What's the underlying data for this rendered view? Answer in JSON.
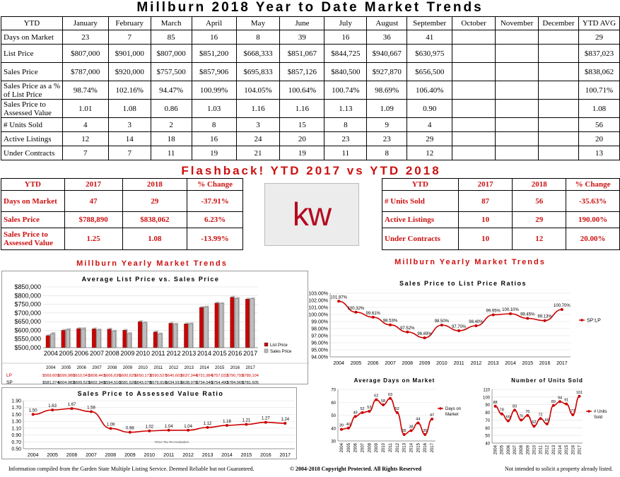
{
  "header": {
    "title": "Millburn 2018 Year to Date Market Trends"
  },
  "main_table": {
    "columns": [
      "YTD",
      "January",
      "February",
      "March",
      "April",
      "May",
      "June",
      "July",
      "August",
      "September",
      "October",
      "November",
      "December",
      "YTD AVG"
    ],
    "rows": [
      {
        "label": "Days on Market",
        "values": [
          "23",
          "7",
          "85",
          "16",
          "8",
          "39",
          "16",
          "36",
          "41",
          "",
          "",
          "",
          "29"
        ]
      },
      {
        "label": "List Price",
        "values": [
          "$807,000",
          "$901,000",
          "$807,000",
          "$851,200",
          "$668,333",
          "$851,067",
          "$844,725",
          "$940,667",
          "$630,975",
          "",
          "",
          "",
          "$837,023"
        ]
      },
      {
        "label": "Sales Price",
        "values": [
          "$787,000",
          "$920,000",
          "$757,500",
          "$857,906",
          "$695,833",
          "$857,126",
          "$840,500",
          "$927,870",
          "$656,500",
          "",
          "",
          "",
          "$838,062"
        ]
      },
      {
        "label": "Sales Price as a % of List Price",
        "values": [
          "98.74%",
          "102.16%",
          "94.47%",
          "100.99%",
          "104.05%",
          "100.64%",
          "100.74%",
          "98.69%",
          "106.40%",
          "",
          "",
          "",
          "100.71%"
        ]
      },
      {
        "label": "Sales Price to Assessed Value",
        "values": [
          "1.01",
          "1.08",
          "0.86",
          "1.03",
          "1.16",
          "1.16",
          "1.13",
          "1.09",
          "0.90",
          "",
          "",
          "",
          "1.08"
        ]
      },
      {
        "label": "# Units Sold",
        "values": [
          "4",
          "3",
          "2",
          "8",
          "3",
          "15",
          "8",
          "9",
          "4",
          "",
          "",
          "",
          "56"
        ]
      },
      {
        "label": "Active Listings",
        "values": [
          "12",
          "14",
          "18",
          "16",
          "24",
          "20",
          "23",
          "23",
          "29",
          "",
          "",
          "",
          "20"
        ]
      },
      {
        "label": "Under Contracts",
        "values": [
          "7",
          "7",
          "11",
          "19",
          "21",
          "19",
          "11",
          "8",
          "12",
          "",
          "",
          "",
          "13"
        ]
      }
    ]
  },
  "flashback": {
    "title": "Flashback!  YTD 2017 vs YTD 2018",
    "left": {
      "columns": [
        "YTD",
        "2017",
        "2018",
        "% Change"
      ],
      "rows": [
        {
          "label": "Days on Market",
          "v2017": "47",
          "v2018": "29",
          "change": "-37.91%"
        },
        {
          "label": "Sales Price",
          "v2017": "$788,890",
          "v2018": "$838,062",
          "change": "6.23%"
        },
        {
          "label": "Sales Price to Assessed Value",
          "v2017": "1.25",
          "v2018": "1.08",
          "change": "-13.99%"
        }
      ]
    },
    "right": {
      "columns": [
        "YTD",
        "2017",
        "2018",
        "% Change"
      ],
      "rows": [
        {
          "label": "# Units Sold",
          "v2017": "87",
          "v2018": "56",
          "change": "-35.63%"
        },
        {
          "label": "Active Listings",
          "v2017": "10",
          "v2018": "29",
          "change": "190.00%"
        },
        {
          "label": "Under Contracts",
          "v2017": "10",
          "v2018": "12",
          "change": "20.00%"
        }
      ]
    },
    "logo_text": "kw",
    "logo_color": "#b40a1f"
  },
  "sections": {
    "left_title": "Millburn Yearly Market Trends",
    "right_title": "Millburn Yearly Market Trends"
  },
  "chart_data": [
    {
      "id": "list-vs-sales",
      "type": "bar",
      "title": "Average List Price vs. Sales Price",
      "categories": [
        "2004",
        "2005",
        "2006",
        "2007",
        "2008",
        "2009",
        "2010",
        "2011",
        "2012",
        "2013",
        "2014",
        "2015",
        "2016",
        "2017"
      ],
      "yticks": [
        "$850,000",
        "$800,000",
        "$750,000",
        "$700,000",
        "$650,000",
        "$600,000",
        "$550,000",
        "$500,000"
      ],
      "ylim": [
        500000,
        850000
      ],
      "series": [
        {
          "name": "List Price",
          "short": "LP",
          "color": "#cc0000",
          "values": [
            569609,
            599980,
            610041,
            608441,
            606636,
            600629,
            650173,
            590527,
            640603,
            637344,
            731984,
            757032,
            790793,
            780104
          ],
          "labels": [
            "$569,609",
            "$599,980",
            "$610,041",
            "$608,441",
            "$606,636",
            "$600,629",
            "$650,173",
            "$590,527",
            "$640,603",
            "$637,344",
            "$731,984",
            "$757,032",
            "$790,793",
            "$780,104"
          ]
        },
        {
          "name": "Sales Price",
          "short": "SP",
          "color": "#bdbdbd",
          "values": [
            581274,
            604983,
            609523,
            602349,
            594510,
            581626,
            643078,
            579916,
            634919,
            638079,
            734040,
            754490,
            784069,
            781605
          ],
          "labels": [
            "$581,274",
            "$604,983",
            "$609,523",
            "$602,349",
            "$594,510",
            "$581,626",
            "$643,078",
            "$579,916",
            "$634,919",
            "$638,079",
            "$734,040",
            "$754,490",
            "$784,069",
            "$781,605"
          ]
        }
      ]
    },
    {
      "id": "sp-lp-ratio",
      "type": "line",
      "title": "Sales Price to List Price Ratios",
      "x": [
        "2004",
        "2005",
        "2006",
        "2007",
        "2008",
        "2009",
        "2010",
        "2011",
        "2012",
        "2013",
        "2014",
        "2015",
        "2016",
        "2017"
      ],
      "yticks": [
        "103.00%",
        "102.00%",
        "101.00%",
        "100.00%",
        "99.00%",
        "98.00%",
        "97.00%",
        "96.00%",
        "95.00%",
        "94.00%"
      ],
      "ylim": [
        94,
        103
      ],
      "series": [
        {
          "name": "SP:LP",
          "color": "#cc0000",
          "values": [
            101.87,
            100.32,
            99.61,
            98.53,
            97.52,
            96.69,
            98.5,
            97.7,
            98.4,
            99.95,
            100.1,
            99.45,
            99.13,
            100.7
          ],
          "labels": [
            "101.87%",
            "100.32%",
            "99.61%",
            "98.53%",
            "97.52%",
            "96.69%",
            "98.50%",
            "97.70%",
            "98.40%",
            "99.95%",
            "100.10%",
            "99.45%",
            "99.13%",
            "100.70%"
          ]
        }
      ]
    },
    {
      "id": "sp-assessed",
      "type": "line",
      "title": "Sales Price to Assessed Value Ratio",
      "x": [
        "2004",
        "2005",
        "2006",
        "2007",
        "2008",
        "2009",
        "2010",
        "2011",
        "2012",
        "2013",
        "2014",
        "2015",
        "2016",
        "2017"
      ],
      "yticks": [
        "1.90",
        "1.70",
        "1.50",
        "1.30",
        "1.10",
        "0.90",
        "0.70",
        "0.50"
      ],
      "ylim": [
        0.5,
        1.9
      ],
      "annotation": "*2014 Tax Re-evaluation",
      "series": [
        {
          "name": "",
          "color": "#cc0000",
          "values": [
            1.5,
            1.63,
            1.67,
            1.58,
            1.09,
            0.98,
            1.02,
            1.04,
            1.04,
            1.12,
            1.18,
            1.21,
            1.27,
            1.24
          ],
          "labels": [
            "1.50",
            "1.63",
            "1.67",
            "1.58",
            "1.09",
            "0.98",
            "1.02",
            "1.04",
            "1.04",
            "1.12",
            "1.18",
            "1.21",
            "1.27",
            "1.24"
          ]
        }
      ]
    },
    {
      "id": "days-on-market",
      "type": "line",
      "title": "Average Days on Market",
      "x": [
        "2004",
        "2005",
        "2006",
        "2007",
        "2008",
        "2009",
        "2010",
        "2011",
        "2012",
        "2013",
        "2014",
        "2015",
        "2016",
        "2017"
      ],
      "yticks": [
        "70",
        "60",
        "50",
        "40",
        "30"
      ],
      "ylim": [
        30,
        70
      ],
      "series": [
        {
          "name": "Days on Market",
          "color": "#cc0000",
          "values": [
            39,
            40,
            49,
            52,
            53,
            62,
            58,
            63,
            52,
            35,
            38,
            44,
            35,
            47
          ],
          "labels": [
            "39",
            "40",
            "49",
            "52",
            "53",
            "62",
            "58",
            "63",
            "52",
            "35",
            "38",
            "44",
            "35",
            "47"
          ]
        }
      ]
    },
    {
      "id": "units-sold",
      "type": "line",
      "title": "Number of Units Sold",
      "x": [
        "2004",
        "2005",
        "2006",
        "2007",
        "2008",
        "2009",
        "2010",
        "2011",
        "2012",
        "2013",
        "2014",
        "2015",
        "2016",
        "2017"
      ],
      "yticks": [
        "110",
        "100",
        "90",
        "80",
        "70",
        "60",
        "50",
        "40"
      ],
      "ylim": [
        40,
        110
      ],
      "series": [
        {
          "name": "# Units Sold",
          "color": "#cc0000",
          "values": [
            88,
            78,
            69,
            83,
            70,
            76,
            62,
            72,
            65,
            89,
            94,
            91,
            77,
            101
          ],
          "labels": [
            "88",
            "78",
            "69",
            "83",
            "70",
            "76",
            "62",
            "72",
            "65",
            "89",
            "94",
            "91",
            "77",
            "101"
          ]
        }
      ]
    }
  ],
  "footer": {
    "left": "Information compiled from the Garden State Multiple Listing Service.  Deemed Reliable but not Guaranteed.",
    "center": "© 2004-2018 Copyright Protected.  All Rights Reserved",
    "right": "Not intended to solicit a property already listed."
  }
}
